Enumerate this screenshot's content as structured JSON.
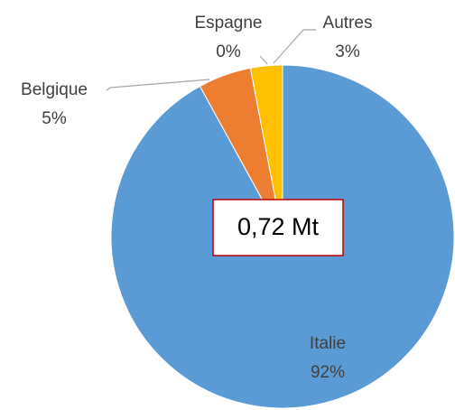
{
  "chart_data": {
    "type": "pie",
    "categories": [
      "Italie",
      "Belgique",
      "Espagne",
      "Autres"
    ],
    "values": [
      92,
      5,
      0,
      3
    ],
    "value_labels": [
      "92%",
      "5%",
      "0%",
      "3%"
    ],
    "colors": [
      "#5b9bd5",
      "#ed7d31",
      "#a5a5a5",
      "#ffc000"
    ],
    "annotation": "0,72 Mt"
  }
}
